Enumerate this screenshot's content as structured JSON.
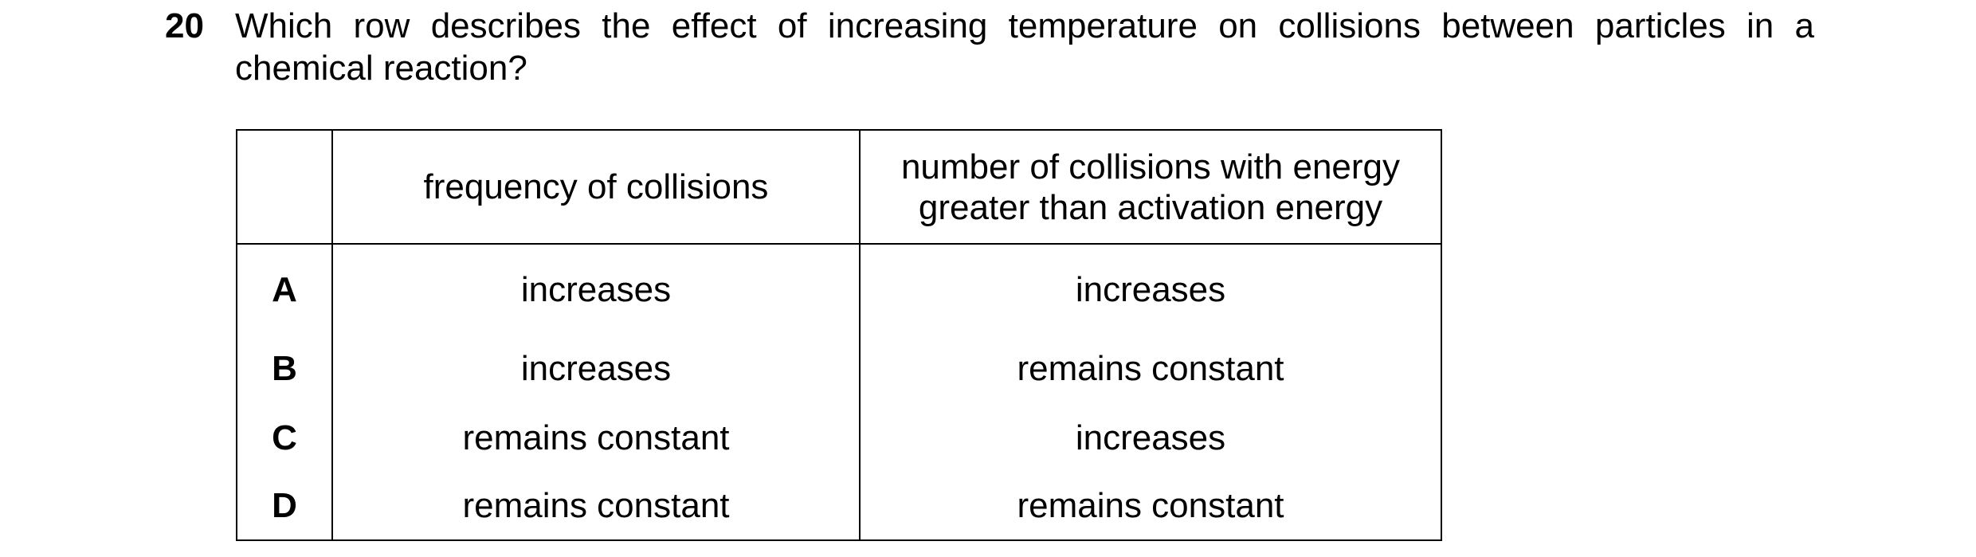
{
  "question": {
    "number": "20",
    "text": "Which row describes the effect of increasing temperature on collisions between particles in a chemical reaction?"
  },
  "table": {
    "headers": [
      "",
      "frequency of collisions",
      "number of collisions with energy\ngreater than activation energy"
    ],
    "rows": [
      {
        "option": "A",
        "frequency": "increases",
        "energetic": "increases"
      },
      {
        "option": "B",
        "frequency": "increases",
        "energetic": "remains constant"
      },
      {
        "option": "C",
        "frequency": "remains constant",
        "energetic": "increases"
      },
      {
        "option": "D",
        "frequency": "remains constant",
        "energetic": "remains constant"
      }
    ]
  }
}
